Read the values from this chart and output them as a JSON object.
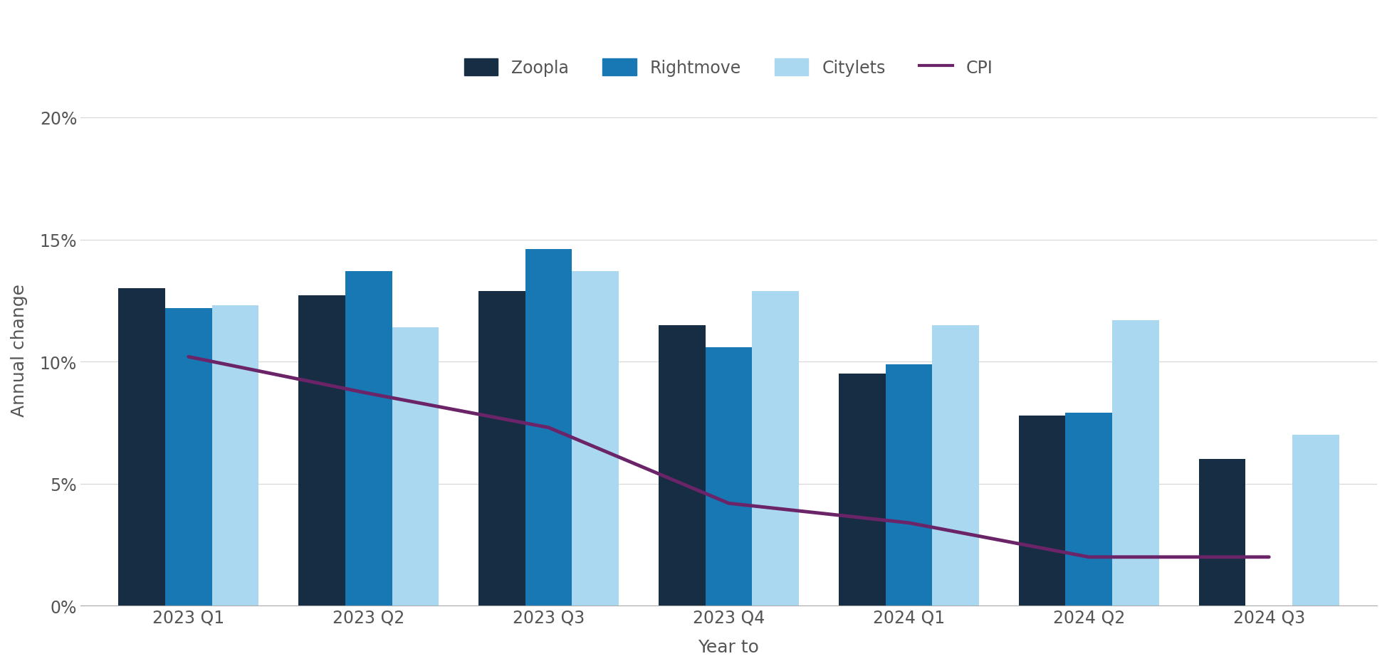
{
  "quarters": [
    "2023 Q1",
    "2023 Q2",
    "2023 Q3",
    "2023 Q4",
    "2024 Q1",
    "2024 Q2",
    "2024 Q3"
  ],
  "zoopla": [
    13.0,
    12.7,
    12.9,
    11.5,
    9.5,
    7.8,
    6.0
  ],
  "rightmove": [
    12.2,
    13.7,
    14.6,
    10.6,
    9.9,
    7.9,
    null
  ],
  "citylets": [
    12.3,
    11.4,
    13.7,
    12.9,
    11.5,
    11.7,
    7.0
  ],
  "cpi": [
    10.2,
    8.7,
    7.3,
    4.2,
    3.4,
    2.0,
    2.0
  ],
  "colors": {
    "zoopla": "#162d44",
    "rightmove": "#1878b4",
    "citylets": "#aad8f0"
  },
  "cpi_color": "#6b2468",
  "ylabel": "Annual change",
  "xlabel": "Year to",
  "ylim": [
    0,
    21
  ],
  "yticks": [
    0,
    5,
    10,
    15,
    20
  ],
  "ytick_labels": [
    "0%",
    "5%",
    "10%",
    "15%",
    "20%"
  ],
  "legend_labels": [
    "Zoopla",
    "Rightmove",
    "Citylets",
    "CPI"
  ],
  "background_color": "#ffffff",
  "bar_width": 0.26,
  "figsize": [
    19.49,
    9.37
  ],
  "dpi": 100
}
